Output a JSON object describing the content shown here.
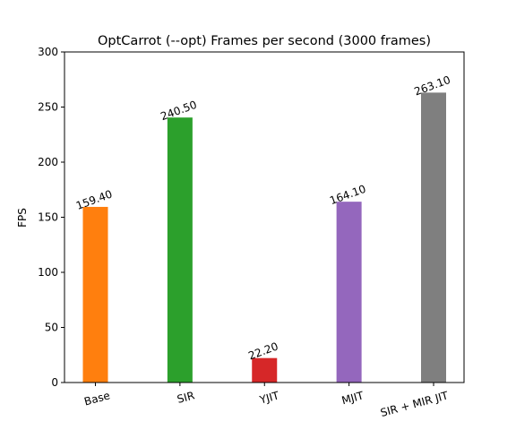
{
  "chart_data": {
    "type": "bar",
    "title": "OptCarrot (--opt) Frames per second (3000 frames)",
    "xlabel": "",
    "ylabel": "FPS",
    "categories": [
      "Base",
      "SIR",
      "YJIT",
      "MJIT",
      "SIR + MIR JIT"
    ],
    "values": [
      159.4,
      240.5,
      22.2,
      164.1,
      263.1
    ],
    "value_labels": [
      "159.40",
      "240.50",
      "22.20",
      "164.10",
      "263.10"
    ],
    "colors": [
      "#ff7f0e",
      "#2ca02c",
      "#d62728",
      "#9467bd",
      "#7f7f7f"
    ],
    "ylim": [
      0,
      300
    ],
    "yticks": [
      0,
      50,
      100,
      150,
      200,
      250,
      300
    ],
    "grid": false,
    "legend": "none"
  }
}
